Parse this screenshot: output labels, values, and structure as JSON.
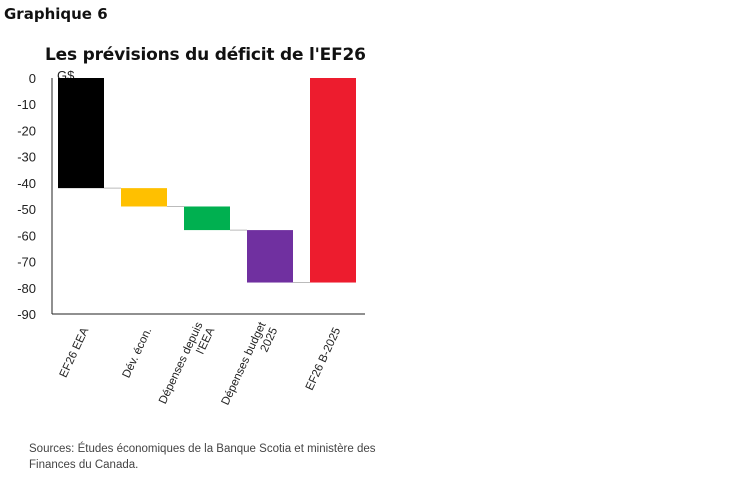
{
  "header": {
    "label": "Graphique 6"
  },
  "chart_data": {
    "type": "bar",
    "subtype": "waterfall",
    "title": "Les prévisions du déficit de l'EF26",
    "ylabel": "G$",
    "ylim": [
      -90,
      0
    ],
    "yticks": [
      0,
      -10,
      -20,
      -30,
      -40,
      -50,
      -60,
      -70,
      -80,
      -90
    ],
    "grid": false,
    "categories": [
      [
        "EF26 EEA"
      ],
      [
        "Dév. écon."
      ],
      [
        "Dépenses depuis",
        "l'EEA"
      ],
      [
        "Dépenses budget",
        "2025"
      ],
      [
        "EF26 B-2025"
      ]
    ],
    "bars": [
      {
        "start": 0,
        "end": -42,
        "color": "#000000"
      },
      {
        "start": -42,
        "end": -49,
        "color": "#FFC000"
      },
      {
        "start": -49,
        "end": -58,
        "color": "#00B050"
      },
      {
        "start": -58,
        "end": -78,
        "color": "#7030A0"
      },
      {
        "start": 0,
        "end": -78,
        "color": "#ED1C2E"
      }
    ],
    "connector_color": "#bbbbbb"
  },
  "footer": {
    "source": "Sources: Études économiques de la Banque Scotia et ministère des Finances du Canada."
  }
}
